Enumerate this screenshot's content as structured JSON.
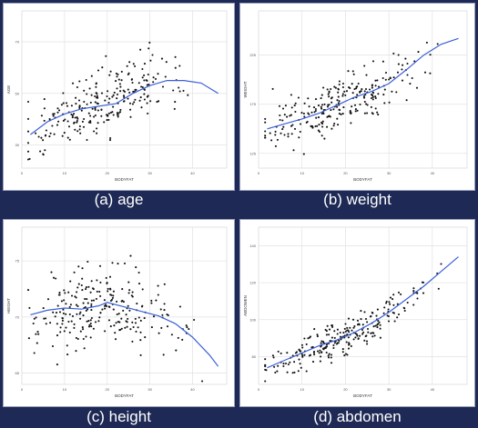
{
  "colors": {
    "background": "#1e2a55",
    "panel": "#ffffff",
    "smooth_line": "#3a5fd9",
    "points": "#111111",
    "grid": "#e2e2e2"
  },
  "chart_data": [
    {
      "type": "scatter",
      "caption": "(a) age",
      "xlabel": "BODYFAT",
      "ylabel": "AGE",
      "xlim": [
        0,
        48
      ],
      "ylim": [
        21,
        82
      ],
      "xticks": [
        0,
        10,
        20,
        30,
        40
      ],
      "yticks": [
        30,
        50,
        70
      ],
      "grid": true,
      "points_seed": 11,
      "point_count": 252,
      "smooth": [
        [
          2,
          34
        ],
        [
          6,
          39
        ],
        [
          10,
          42
        ],
        [
          14,
          44
        ],
        [
          18,
          45
        ],
        [
          22,
          46
        ],
        [
          26,
          50
        ],
        [
          30,
          53
        ],
        [
          34,
          55
        ],
        [
          38,
          55
        ],
        [
          42,
          54
        ],
        [
          46,
          50
        ]
      ],
      "scatter_spread": 9.5
    },
    {
      "type": "scatter",
      "caption": "(b) weight",
      "xlabel": "BODYFAT",
      "ylabel": "WEIGHT",
      "xlim": [
        0,
        48
      ],
      "ylim": [
        110,
        270
      ],
      "xticks": [
        0,
        10,
        20,
        30,
        40
      ],
      "yticks": [
        125,
        175,
        225
      ],
      "grid": true,
      "points_seed": 23,
      "point_count": 252,
      "smooth": [
        [
          2,
          150
        ],
        [
          6,
          155
        ],
        [
          10,
          160
        ],
        [
          14,
          166
        ],
        [
          18,
          174
        ],
        [
          22,
          182
        ],
        [
          26,
          188
        ],
        [
          30,
          196
        ],
        [
          34,
          210
        ],
        [
          38,
          225
        ],
        [
          42,
          236
        ],
        [
          46,
          242
        ]
      ],
      "scatter_spread": 20
    },
    {
      "type": "scatter",
      "caption": "(c) height",
      "xlabel": "BODYFAT",
      "ylabel": "HEIGHT",
      "xlim": [
        0,
        48
      ],
      "ylim": [
        64,
        78
      ],
      "xticks": [
        0,
        10,
        20,
        30,
        40
      ],
      "yticks": [
        65,
        70,
        75
      ],
      "grid": true,
      "points_seed": 37,
      "point_count": 252,
      "smooth": [
        [
          2,
          70.2
        ],
        [
          6,
          70.6
        ],
        [
          10,
          70.8
        ],
        [
          14,
          70.7
        ],
        [
          18,
          71.0
        ],
        [
          20,
          71.3
        ],
        [
          24,
          70.9
        ],
        [
          28,
          70.5
        ],
        [
          32,
          70.1
        ],
        [
          36,
          69.4
        ],
        [
          40,
          68.2
        ],
        [
          44,
          66.6
        ],
        [
          46,
          65.6
        ]
      ],
      "scatter_spread": 2.6
    },
    {
      "type": "scatter",
      "caption": "(d) abdomen",
      "xlabel": "BODYFAT",
      "ylabel": "ABDOMEN",
      "xlim": [
        0,
        48
      ],
      "ylim": [
        65,
        150
      ],
      "xticks": [
        0,
        10,
        20,
        30,
        40
      ],
      "yticks": [
        80,
        100,
        120,
        140
      ],
      "grid": true,
      "points_seed": 53,
      "point_count": 252,
      "smooth": [
        [
          2,
          74
        ],
        [
          6,
          78
        ],
        [
          10,
          82
        ],
        [
          14,
          86
        ],
        [
          18,
          89
        ],
        [
          22,
          93
        ],
        [
          26,
          98
        ],
        [
          30,
          104
        ],
        [
          34,
          111
        ],
        [
          38,
          118
        ],
        [
          42,
          126
        ],
        [
          46,
          134
        ]
      ],
      "scatter_spread": 6.5
    }
  ]
}
